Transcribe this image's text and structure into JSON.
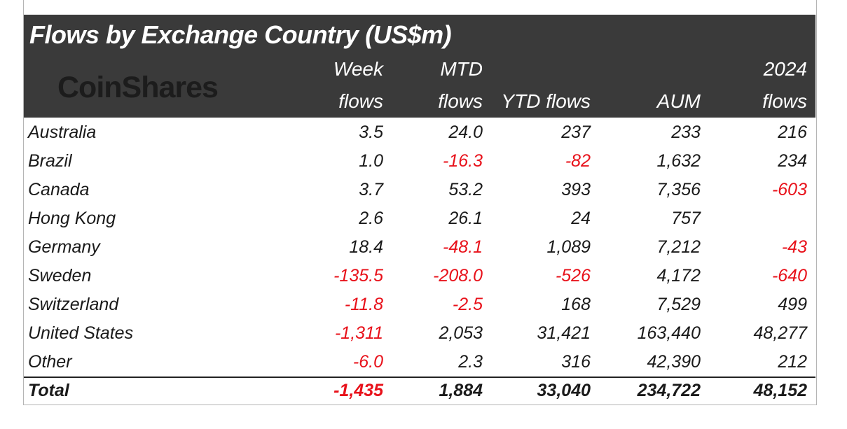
{
  "table": {
    "title": "Flows by Exchange Country (US$m)",
    "logo_text": "CoinShares",
    "columns": [
      {
        "line1": "Week",
        "line2": "flows"
      },
      {
        "line1": "MTD",
        "line2": "flows"
      },
      {
        "line1": "",
        "line2": "YTD flows"
      },
      {
        "line1": "",
        "line2": "AUM"
      },
      {
        "line1": "2024",
        "line2": "flows"
      }
    ],
    "rows": [
      {
        "label": "Australia",
        "values": [
          "3.5",
          "24.0",
          "237",
          "233",
          "216"
        ]
      },
      {
        "label": "Brazil",
        "values": [
          "1.0",
          "-16.3",
          "-82",
          "1,632",
          "234"
        ]
      },
      {
        "label": "Canada",
        "values": [
          "3.7",
          "53.2",
          "393",
          "7,356",
          "-603"
        ]
      },
      {
        "label": "Hong Kong",
        "values": [
          "2.6",
          "26.1",
          "24",
          "757",
          ""
        ]
      },
      {
        "label": "Germany",
        "values": [
          "18.4",
          "-48.1",
          "1,089",
          "7,212",
          "-43"
        ]
      },
      {
        "label": "Sweden",
        "values": [
          "-135.5",
          "-208.0",
          "-526",
          "4,172",
          "-640"
        ]
      },
      {
        "label": "Switzerland",
        "values": [
          "-11.8",
          "-2.5",
          "168",
          "7,529",
          "499"
        ]
      },
      {
        "label": "United States",
        "values": [
          "-1,311",
          "2,053",
          "31,421",
          "163,440",
          "48,277"
        ]
      },
      {
        "label": "Other",
        "values": [
          "-6.0",
          "2.3",
          "316",
          "42,390",
          "212"
        ]
      }
    ],
    "total": {
      "label": "Total",
      "values": [
        "-1,435",
        "1,884",
        "33,040",
        "234,722",
        "48,152"
      ]
    },
    "colors": {
      "header_bg": "#3a3a3a",
      "negative": "#e8111a",
      "text": "#1a1a1a"
    }
  }
}
